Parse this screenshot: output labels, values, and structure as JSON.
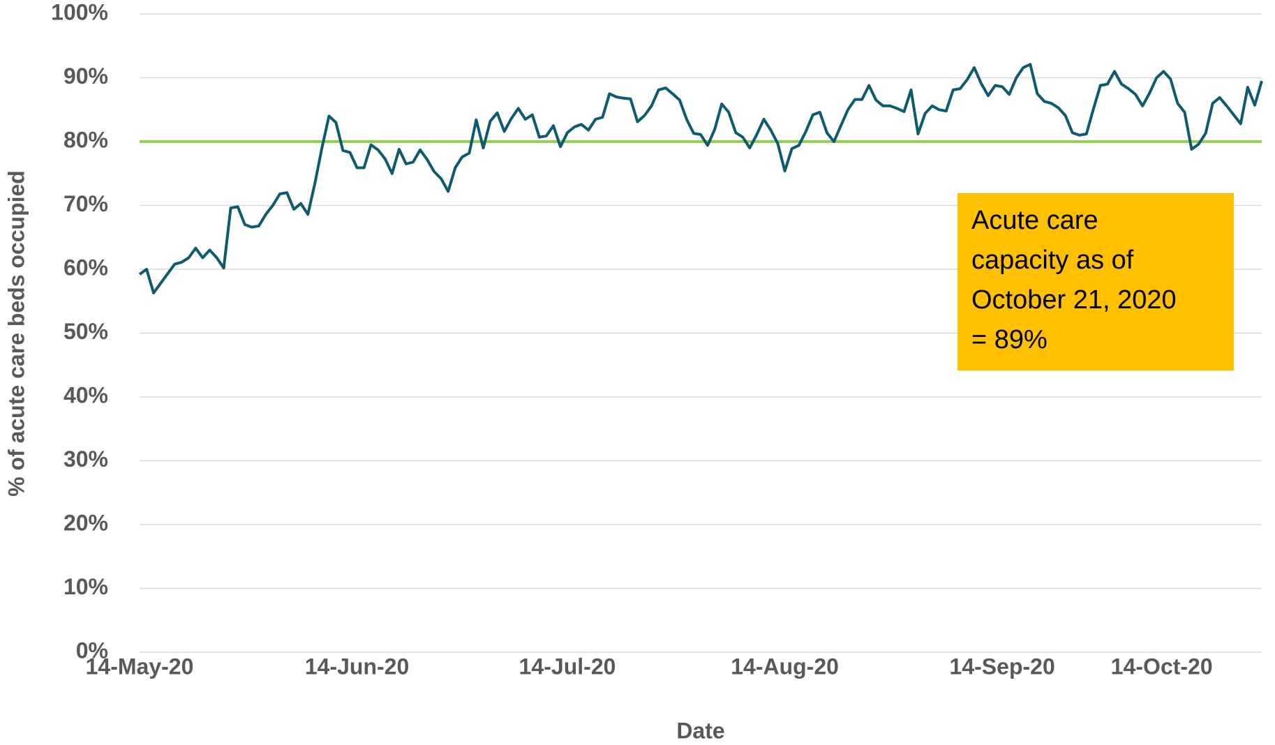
{
  "chart_data": {
    "type": "line",
    "xlabel": "Date",
    "ylabel": "% of acute care beds occupied",
    "color": "#0e5a6e",
    "x": [
      "2020-05-14",
      "2020-05-15",
      "2020-05-16",
      "2020-05-17",
      "2020-05-18",
      "2020-05-19",
      "2020-05-20",
      "2020-05-21",
      "2020-05-22",
      "2020-05-23",
      "2020-05-24",
      "2020-05-25",
      "2020-05-26",
      "2020-05-27",
      "2020-05-28",
      "2020-05-29",
      "2020-05-30",
      "2020-05-31",
      "2020-06-01",
      "2020-06-02",
      "2020-06-03",
      "2020-06-04",
      "2020-06-05",
      "2020-06-06",
      "2020-06-07",
      "2020-06-08",
      "2020-06-09",
      "2020-06-10",
      "2020-06-11",
      "2020-06-12",
      "2020-06-13",
      "2020-06-14",
      "2020-06-15",
      "2020-06-16",
      "2020-06-17",
      "2020-06-18",
      "2020-06-19",
      "2020-06-20",
      "2020-06-21",
      "2020-06-22",
      "2020-06-23",
      "2020-06-24",
      "2020-06-25",
      "2020-06-26",
      "2020-06-27",
      "2020-06-28",
      "2020-06-29",
      "2020-06-30",
      "2020-07-01",
      "2020-07-02",
      "2020-07-03",
      "2020-07-04",
      "2020-07-05",
      "2020-07-06",
      "2020-07-07",
      "2020-07-08",
      "2020-07-09",
      "2020-07-10",
      "2020-07-11",
      "2020-07-12",
      "2020-07-13",
      "2020-07-14",
      "2020-07-15",
      "2020-07-16",
      "2020-07-17",
      "2020-07-18",
      "2020-07-19",
      "2020-07-20",
      "2020-07-21",
      "2020-07-22",
      "2020-07-23",
      "2020-07-24",
      "2020-07-25",
      "2020-07-26",
      "2020-07-27",
      "2020-07-28",
      "2020-07-29",
      "2020-07-30",
      "2020-07-31",
      "2020-08-01",
      "2020-08-02",
      "2020-08-03",
      "2020-08-04",
      "2020-08-05",
      "2020-08-06",
      "2020-08-07",
      "2020-08-08",
      "2020-08-09",
      "2020-08-10",
      "2020-08-11",
      "2020-08-12",
      "2020-08-13",
      "2020-08-14",
      "2020-08-15",
      "2020-08-16",
      "2020-08-17",
      "2020-08-18",
      "2020-08-19",
      "2020-08-20",
      "2020-08-21",
      "2020-08-22",
      "2020-08-23",
      "2020-08-24",
      "2020-08-25",
      "2020-08-26",
      "2020-08-27",
      "2020-08-28",
      "2020-08-29",
      "2020-08-30",
      "2020-08-31",
      "2020-09-01",
      "2020-09-02",
      "2020-09-03",
      "2020-09-04",
      "2020-09-05",
      "2020-09-06",
      "2020-09-07",
      "2020-09-08",
      "2020-09-09",
      "2020-09-10",
      "2020-09-11",
      "2020-09-12",
      "2020-09-13",
      "2020-09-14",
      "2020-09-15",
      "2020-09-16",
      "2020-09-17",
      "2020-09-18",
      "2020-09-19",
      "2020-09-20",
      "2020-09-21",
      "2020-09-22",
      "2020-09-23",
      "2020-09-24",
      "2020-09-25",
      "2020-09-26",
      "2020-09-27",
      "2020-09-28",
      "2020-09-29",
      "2020-09-30",
      "2020-10-01",
      "2020-10-02",
      "2020-10-03",
      "2020-10-04",
      "2020-10-05",
      "2020-10-06",
      "2020-10-07",
      "2020-10-08",
      "2020-10-09",
      "2020-10-10",
      "2020-10-11",
      "2020-10-12",
      "2020-10-13",
      "2020-10-14",
      "2020-10-15",
      "2020-10-16",
      "2020-10-17",
      "2020-10-18",
      "2020-10-19",
      "2020-10-20",
      "2020-10-21"
    ],
    "values": [
      59.2,
      60,
      56.3,
      57.8,
      59.3,
      60.8,
      61.1,
      61.8,
      63.3,
      61.8,
      63,
      61.8,
      60.2,
      69.6,
      69.8,
      67,
      66.6,
      66.8,
      68.6,
      70,
      71.8,
      72,
      69.4,
      70.3,
      68.6,
      73.5,
      79,
      84,
      83,
      78.6,
      78.3,
      75.9,
      75.9,
      79.5,
      78.7,
      77.3,
      75,
      78.8,
      76.5,
      76.8,
      78.7,
      77.2,
      75.3,
      74.2,
      72.2,
      75.9,
      77.6,
      78.2,
      83.4,
      79,
      83.2,
      84.5,
      81.6,
      83.6,
      85.2,
      83.5,
      84.2,
      80.7,
      80.9,
      82.5,
      79.2,
      81.4,
      82.3,
      82.7,
      81.8,
      83.5,
      83.8,
      87.5,
      87,
      86.8,
      86.7,
      83.1,
      84.1,
      85.6,
      88.1,
      88.4,
      87.5,
      86.5,
      83.5,
      81.3,
      81.1,
      79.4,
      81.9,
      85.9,
      84.6,
      81.4,
      80.7,
      79,
      81.1,
      83.5,
      81.8,
      79.7,
      75.4,
      78.9,
      79.4,
      81.6,
      84.2,
      84.6,
      81.4,
      80,
      82.5,
      85,
      86.6,
      86.6,
      88.8,
      86.5,
      85.6,
      85.6,
      85.2,
      84.7,
      88.1,
      81.2,
      84.4,
      85.6,
      85,
      84.8,
      88.1,
      88.3,
      89.7,
      91.6,
      89.1,
      87.2,
      88.8,
      88.6,
      87.4,
      90,
      91.6,
      92.1,
      87.5,
      86.3,
      86,
      85.3,
      84.1,
      81.4,
      81,
      81.2,
      85.1,
      88.8,
      89,
      91,
      89,
      88.3,
      87.4,
      85.6,
      87.6,
      90,
      91,
      89.8,
      86,
      84.6,
      78.8,
      79.6,
      81.3,
      86,
      86.9,
      85.6,
      84.2,
      82.8,
      88.5,
      85.7,
      89.5
    ],
    "xlim": [
      "2020-05-14",
      "2020-10-21"
    ],
    "xticks": [
      {
        "value": "2020-05-14",
        "label": "14-May-20"
      },
      {
        "value": "2020-06-14",
        "label": "14-Jun-20"
      },
      {
        "value": "2020-07-14",
        "label": "14-Jul-20"
      },
      {
        "value": "2020-08-14",
        "label": "14-Aug-20"
      },
      {
        "value": "2020-09-14",
        "label": "14-Sep-20"
      },
      {
        "value": "2020-10-14",
        "label": "14-Oct-20"
      }
    ],
    "ylim": [
      0,
      100
    ],
    "yticks": [
      {
        "value": 0,
        "label": "0%"
      },
      {
        "value": 10,
        "label": "10%"
      },
      {
        "value": 20,
        "label": "20%"
      },
      {
        "value": 30,
        "label": "30%"
      },
      {
        "value": 40,
        "label": "40%"
      },
      {
        "value": 50,
        "label": "50%"
      },
      {
        "value": 60,
        "label": "60%"
      },
      {
        "value": 70,
        "label": "70%"
      },
      {
        "value": 80,
        "label": "80%"
      },
      {
        "value": 90,
        "label": "90%"
      },
      {
        "value": 100,
        "label": "100%"
      }
    ],
    "grid": true,
    "reference_line": {
      "value": 80,
      "color": "#92d050"
    },
    "annotation": {
      "lines": [
        "Acute care",
        "capacity as of",
        "October 21, 2020",
        "= 89%"
      ],
      "color": "#ffc000"
    }
  }
}
